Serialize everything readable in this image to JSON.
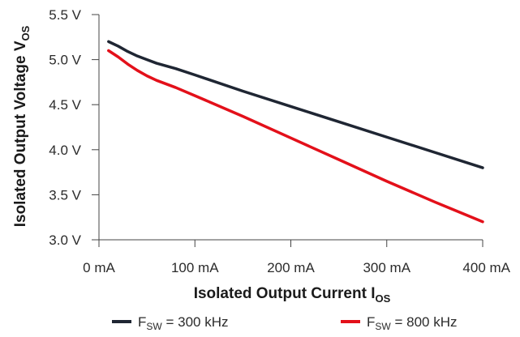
{
  "chart_data": {
    "type": "line",
    "ylabel": {
      "main": "Isolated Output Voltage V",
      "sub": "OS"
    },
    "xlabel": {
      "main": "Isolated Output Current I",
      "sub": "OS"
    },
    "xlim": [
      0,
      400
    ],
    "ylim": [
      3.0,
      5.5
    ],
    "x_ticks": [
      {
        "value": 0,
        "label": "0 mA"
      },
      {
        "value": 100,
        "label": "100 mA"
      },
      {
        "value": 200,
        "label": "200 mA"
      },
      {
        "value": 300,
        "label": "300 mA"
      },
      {
        "value": 400,
        "label": "400 mA"
      }
    ],
    "y_ticks": [
      {
        "value": 3.0,
        "label": "3.0 V"
      },
      {
        "value": 3.5,
        "label": "3.5 V"
      },
      {
        "value": 4.0,
        "label": "4.0 V"
      },
      {
        "value": 4.5,
        "label": "4.5 V"
      },
      {
        "value": 5.0,
        "label": "5.0 V"
      },
      {
        "value": 5.5,
        "label": "5.5 V"
      }
    ],
    "grid": false,
    "legend_position": "bottom",
    "series": [
      {
        "name": "F",
        "name_sub": "SW",
        "name_suffix": " = 300 kHz",
        "color": "#1f2633",
        "x": [
          10,
          20,
          30,
          40,
          50,
          60,
          80,
          100,
          150,
          200,
          250,
          300,
          350,
          400
        ],
        "y": [
          5.2,
          5.15,
          5.09,
          5.04,
          5.0,
          4.96,
          4.9,
          4.83,
          4.65,
          4.48,
          4.31,
          4.14,
          3.97,
          3.8
        ]
      },
      {
        "name": "F",
        "name_sub": "SW",
        "name_suffix": " = 800 kHz",
        "color": "#e3101a",
        "x": [
          10,
          20,
          30,
          40,
          50,
          60,
          80,
          100,
          150,
          200,
          250,
          300,
          350,
          400
        ],
        "y": [
          5.1,
          5.03,
          4.95,
          4.88,
          4.82,
          4.77,
          4.69,
          4.6,
          4.37,
          4.13,
          3.89,
          3.65,
          3.42,
          3.2
        ]
      }
    ]
  }
}
